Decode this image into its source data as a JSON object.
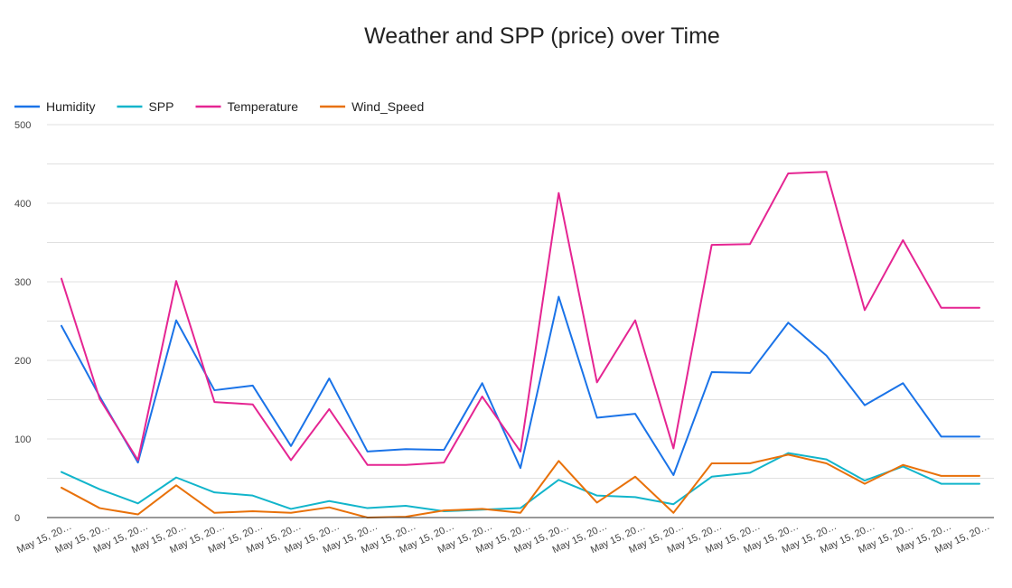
{
  "chart_data": {
    "type": "line",
    "title": "Weather and SPP (price) over Time",
    "xlabel": "",
    "ylabel": "",
    "ylim": [
      0,
      500
    ],
    "yticks": [
      0,
      100,
      200,
      300,
      400,
      500
    ],
    "grid": true,
    "legend_position": "top-left",
    "categories": [
      "May 15, 20…",
      "May 15, 20…",
      "May 15, 20…",
      "May 15, 20…",
      "May 15, 20…",
      "May 15, 20…",
      "May 15, 20…",
      "May 15, 20…",
      "May 15, 20…",
      "May 15, 20…",
      "May 15, 20…",
      "May 15, 20…",
      "May 15, 20…",
      "May 15, 20…",
      "May 15, 20…",
      "May 15, 20…",
      "May 15, 20…",
      "May 15, 20…",
      "May 15, 20…",
      "May 15, 20…",
      "May 15, 20…",
      "May 15, 20…",
      "May 15, 20…",
      "May 15, 20…",
      "May 15, 20…"
    ],
    "series": [
      {
        "name": "Humidity",
        "color": "#1a73e8",
        "values": [
          244,
          154,
          70,
          251,
          162,
          168,
          91,
          177,
          84,
          87,
          86,
          171,
          63,
          281,
          127,
          132,
          54,
          185,
          184,
          248,
          206,
          143,
          171,
          103,
          103
        ]
      },
      {
        "name": "SPP",
        "color": "#12b5cb",
        "values": [
          58,
          36,
          18,
          51,
          32,
          28,
          11,
          21,
          12,
          15,
          8,
          10,
          12,
          48,
          28,
          26,
          17,
          52,
          57,
          82,
          74,
          47,
          65,
          43,
          43
        ]
      },
      {
        "name": "Temperature",
        "color": "#e52592",
        "values": [
          304,
          151,
          73,
          301,
          147,
          144,
          73,
          138,
          67,
          67,
          70,
          154,
          84,
          413,
          172,
          251,
          88,
          347,
          348,
          438,
          440,
          264,
          353,
          267,
          267
        ]
      },
      {
        "name": "Wind_Speed",
        "color": "#e8710a",
        "values": [
          38,
          12,
          4,
          41,
          6,
          8,
          6,
          13,
          0,
          1,
          9,
          11,
          6,
          72,
          19,
          52,
          6,
          69,
          69,
          80,
          69,
          43,
          67,
          53,
          53
        ]
      }
    ]
  }
}
